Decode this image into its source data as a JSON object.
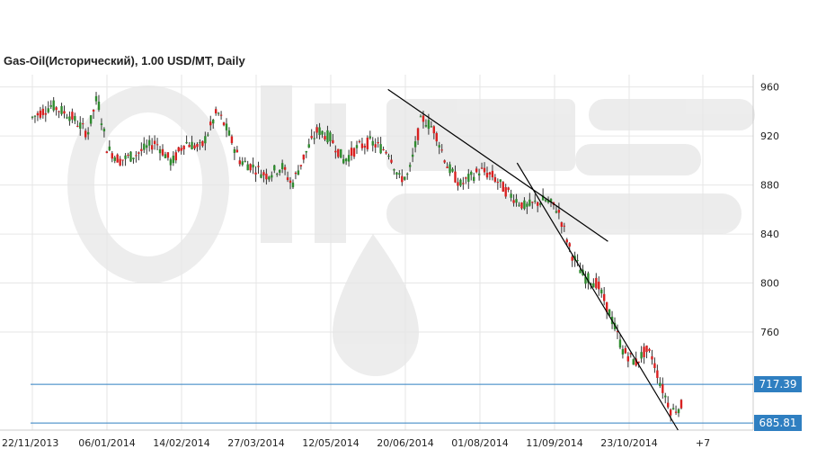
{
  "title": "Gas-Oil(Исторический), 1.00 USD/MT, Daily",
  "colors": {
    "up": "#2e8b2e",
    "down": "#d92020",
    "grid": "#e6e6e6",
    "level": "#2f7fc1",
    "trend": "#000000"
  },
  "chart_data": {
    "type": "candlestick",
    "x_tick_labels": [
      "22/11/2013",
      "06/01/2014",
      "14/02/2014",
      "27/03/2014",
      "12/05/2014",
      "20/06/2014",
      "01/08/2014",
      "11/09/2014",
      "23/10/2014",
      "+7"
    ],
    "y_ticks": [
      760,
      800,
      840,
      880,
      920,
      960
    ],
    "ylim": [
      680,
      970
    ],
    "grid": true,
    "levels": [
      {
        "label": "717.39",
        "value": 717.39
      },
      {
        "label": "685.81",
        "value": 685.81
      }
    ],
    "trendlines": [
      {
        "name": "upper",
        "from": {
          "t": 0.548,
          "v": 958
        },
        "to": {
          "t": 0.887,
          "v": 834
        }
      },
      {
        "name": "lower",
        "from": {
          "t": 0.747,
          "v": 898
        },
        "to": {
          "t": 0.995,
          "v": 680
        }
      }
    ],
    "price_path": [
      [
        0.0,
        935
      ],
      [
        0.03,
        945
      ],
      [
        0.06,
        936
      ],
      [
        0.085,
        922
      ],
      [
        0.1,
        952
      ],
      [
        0.115,
        910
      ],
      [
        0.135,
        900
      ],
      [
        0.16,
        905
      ],
      [
        0.19,
        915
      ],
      [
        0.215,
        898
      ],
      [
        0.235,
        915
      ],
      [
        0.26,
        910
      ],
      [
        0.285,
        940
      ],
      [
        0.3,
        925
      ],
      [
        0.32,
        900
      ],
      [
        0.34,
        895
      ],
      [
        0.36,
        888
      ],
      [
        0.385,
        895
      ],
      [
        0.4,
        880
      ],
      [
        0.42,
        905
      ],
      [
        0.44,
        925
      ],
      [
        0.46,
        918
      ],
      [
        0.48,
        900
      ],
      [
        0.5,
        910
      ],
      [
        0.52,
        915
      ],
      [
        0.55,
        907
      ],
      [
        0.565,
        885
      ],
      [
        0.58,
        888
      ],
      [
        0.6,
        935
      ],
      [
        0.62,
        925
      ],
      [
        0.64,
        895
      ],
      [
        0.66,
        880
      ],
      [
        0.69,
        892
      ],
      [
        0.71,
        887
      ],
      [
        0.73,
        875
      ],
      [
        0.76,
        862
      ],
      [
        0.79,
        868
      ],
      [
        0.81,
        860
      ],
      [
        0.83,
        825
      ],
      [
        0.85,
        805
      ],
      [
        0.87,
        800
      ],
      [
        0.89,
        775
      ],
      [
        0.91,
        745
      ],
      [
        0.93,
        735
      ],
      [
        0.945,
        745
      ],
      [
        0.955,
        740
      ],
      [
        0.97,
        715
      ],
      [
        0.985,
        695
      ],
      [
        1.0,
        700
      ]
    ]
  }
}
